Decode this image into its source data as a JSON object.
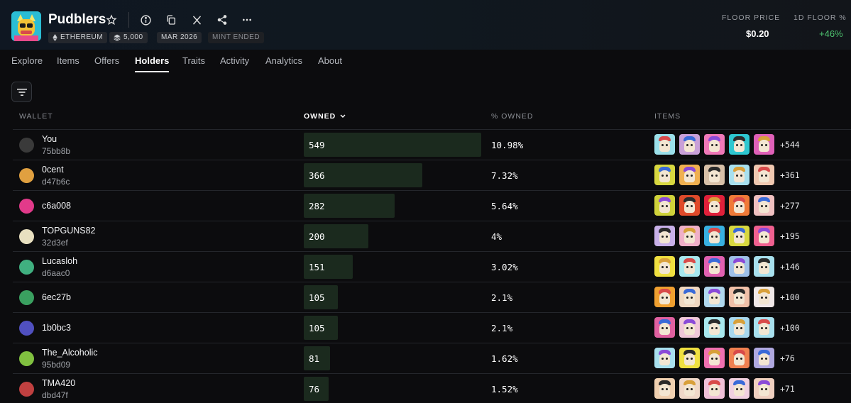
{
  "collection": {
    "name": "Pudblers",
    "badges": [
      {
        "icon": "ethereum-icon",
        "label": "ETHEREUM"
      },
      {
        "icon": "stack-icon",
        "label": "5,000"
      },
      {
        "label": "MAR 2026"
      },
      {
        "label": "MINT ENDED"
      }
    ]
  },
  "stats": {
    "floor_label": "FLOOR PRICE",
    "floor_value": "$0.20",
    "change_label": "1D FLOOR %",
    "change_value": "+46%",
    "change_color": "#4ec36f"
  },
  "tabs": [
    "Explore",
    "Items",
    "Offers",
    "Holders",
    "Traits",
    "Activity",
    "Analytics",
    "About"
  ],
  "active_tab": "Holders",
  "table": {
    "headers": {
      "wallet": "WALLET",
      "owned": "OWNED",
      "pct": "% OWNED",
      "items": "ITEMS"
    },
    "rows": [
      {
        "name": "You",
        "addr": "75bb8b",
        "owned": "549",
        "owned_num": 549,
        "pct": "10.98%",
        "more": "+544",
        "avatar": "#3a3a3a",
        "items": [
          "#9be0ea",
          "#c9a0d8",
          "#f078b8",
          "#2ec7d0",
          "#e060b8"
        ]
      },
      {
        "name": "0cent",
        "addr": "d47b6c",
        "owned": "366",
        "owned_num": 366,
        "pct": "7.32%",
        "more": "+361",
        "avatar": "#e0a040",
        "items": [
          "#d8d840",
          "#f0b050",
          "#d8c0a8",
          "#a8e0ee",
          "#f0c8b0"
        ]
      },
      {
        "name": "c6a008",
        "addr": "",
        "owned": "282",
        "owned_num": 282,
        "pct": "5.64%",
        "more": "+277",
        "avatar": "#e23a8a",
        "items": [
          "#cfd23a",
          "#e04a2a",
          "#e0203a",
          "#f07a38",
          "#f0c0c0"
        ]
      },
      {
        "name": "TOPGUNS82",
        "addr": "32d3ef",
        "owned": "200",
        "owned_num": 200,
        "pct": "4%",
        "more": "+195",
        "avatar": "#e8e0c0",
        "items": [
          "#c8b0e8",
          "#f0b0c8",
          "#38b0e0",
          "#d8d840",
          "#f06090"
        ]
      },
      {
        "name": "Lucasloh",
        "addr": "d6aac0",
        "owned": "151",
        "owned_num": 151,
        "pct": "3.02%",
        "more": "+146",
        "avatar": "#40b080",
        "items": [
          "#f0e040",
          "#a8e8ee",
          "#e060b0",
          "#9ec0e8",
          "#a8e0ee"
        ]
      },
      {
        "name": "6ec27b",
        "addr": "",
        "owned": "105",
        "owned_num": 105,
        "pct": "2.1%",
        "more": "+100",
        "avatar": "#3aa060",
        "items": [
          "#f0a030",
          "#f0d8c0",
          "#b0d8ee",
          "#f0c0a8",
          "#f0e8e8"
        ]
      },
      {
        "name": "1b0bc3",
        "addr": "",
        "owned": "105",
        "owned_num": 105,
        "pct": "2.1%",
        "more": "+100",
        "avatar": "#5050c0",
        "items": [
          "#e060a0",
          "#f0c8d8",
          "#a8e8ee",
          "#a8d8ee",
          "#a8e0ee"
        ]
      },
      {
        "name": "The_Alcoholic",
        "addr": "95bd09",
        "owned": "81",
        "owned_num": 81,
        "pct": "1.62%",
        "more": "+76",
        "avatar": "#80c040",
        "items": [
          "#a8e0ee",
          "#f0e040",
          "#f070b0",
          "#f08050",
          "#b0a8e0"
        ]
      },
      {
        "name": "TMA420",
        "addr": "dbd47f",
        "owned": "76",
        "owned_num": 76,
        "pct": "1.52%",
        "more": "+71",
        "avatar": "#c04040",
        "items": [
          "#f0d0b0",
          "#f0d8c8",
          "#f0c0d8",
          "#f0d0e0",
          "#f0d0c0"
        ]
      }
    ]
  }
}
